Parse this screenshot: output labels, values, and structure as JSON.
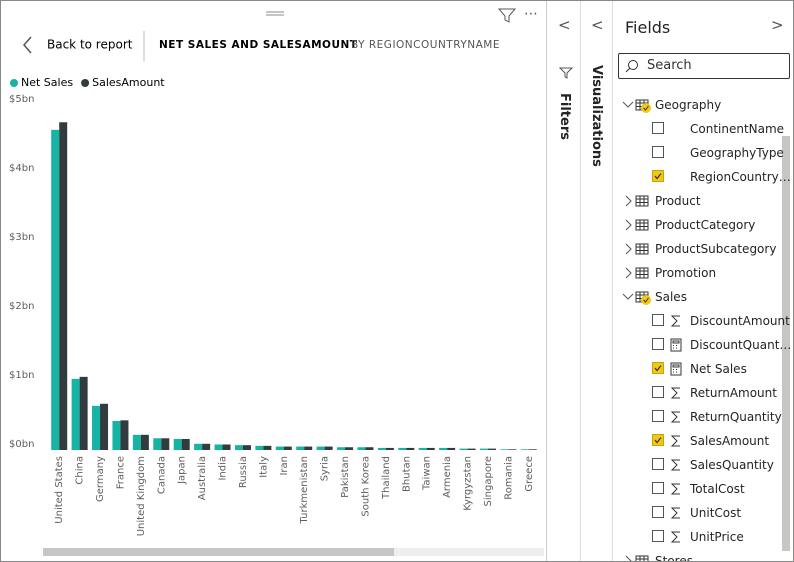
{
  "header": {
    "back": "Back to report",
    "title": "NET SALES AND SALESAMOUNT",
    "subtitle": "BY REGIONCOUNTRYNAME"
  },
  "chart_data": {
    "type": "bar",
    "categories": [
      "United States",
      "China",
      "Germany",
      "France",
      "United Kingdom",
      "Canada",
      "Japan",
      "Australia",
      "India",
      "Russia",
      "Italy",
      "Iran",
      "Turkmenistan",
      "Syria",
      "Pakistan",
      "South Korea",
      "Thailand",
      "Bhutan",
      "Taiwan",
      "Armenia",
      "Kyrgyzstan",
      "Singapore",
      "Romania",
      "Greece"
    ],
    "series": [
      {
        "name": "Net Sales",
        "color": "#15b4a4",
        "values": [
          4.64,
          1.03,
          0.64,
          0.42,
          0.22,
          0.17,
          0.16,
          0.09,
          0.08,
          0.07,
          0.06,
          0.05,
          0.05,
          0.05,
          0.04,
          0.04,
          0.03,
          0.03,
          0.03,
          0.03,
          0.02,
          0.02,
          0.01,
          0.01
        ]
      },
      {
        "name": "SalesAmount",
        "color": "#323c3e",
        "values": [
          4.75,
          1.06,
          0.67,
          0.43,
          0.22,
          0.17,
          0.16,
          0.09,
          0.08,
          0.07,
          0.06,
          0.05,
          0.05,
          0.05,
          0.04,
          0.04,
          0.03,
          0.03,
          0.03,
          0.03,
          0.02,
          0.02,
          0.01,
          0.01
        ]
      }
    ],
    "ylim": [
      0,
      5
    ],
    "yticks": [
      {
        "value": 0,
        "label": "$0bn"
      },
      {
        "value": 1,
        "label": "$1bn"
      },
      {
        "value": 2,
        "label": "$2bn"
      },
      {
        "value": 3,
        "label": "$3bn"
      },
      {
        "value": 4,
        "label": "$4bn"
      },
      {
        "value": 5,
        "label": "$5bn"
      }
    ],
    "grid": false
  },
  "panes": {
    "filters": "Filters",
    "visualizations": "Visualizations"
  },
  "fields": {
    "title": "Fields",
    "search": "Search",
    "tables": [
      {
        "name": "Geography",
        "expanded": true,
        "fields": [
          {
            "name": "ContinentName",
            "checked": false
          },
          {
            "name": "GeographyType",
            "checked": false
          },
          {
            "name": "RegionCountry…",
            "checked": true
          }
        ]
      },
      {
        "name": "Product",
        "expanded": false
      },
      {
        "name": "ProductCategory",
        "expanded": false
      },
      {
        "name": "ProductSubcategory",
        "expanded": false
      },
      {
        "name": "Promotion",
        "expanded": false
      },
      {
        "name": "Sales",
        "expanded": true,
        "fields": [
          {
            "name": "DiscountAmount",
            "checked": false,
            "icon": "sigma"
          },
          {
            "name": "DiscountQuant…",
            "checked": false,
            "icon": "calculator"
          },
          {
            "name": "Net Sales",
            "checked": true,
            "icon": "calculator"
          },
          {
            "name": "ReturnAmount",
            "checked": false,
            "icon": "sigma"
          },
          {
            "name": "ReturnQuantity",
            "checked": false,
            "icon": "sigma"
          },
          {
            "name": "SalesAmount",
            "checked": true,
            "icon": "sigma"
          },
          {
            "name": "SalesQuantity",
            "checked": false,
            "icon": "sigma"
          },
          {
            "name": "TotalCost",
            "checked": false,
            "icon": "sigma"
          },
          {
            "name": "UnitCost",
            "checked": false,
            "icon": "sigma"
          },
          {
            "name": "UnitPrice",
            "checked": false,
            "icon": "sigma"
          }
        ]
      },
      {
        "name": "Stores",
        "expanded": false
      }
    ]
  }
}
